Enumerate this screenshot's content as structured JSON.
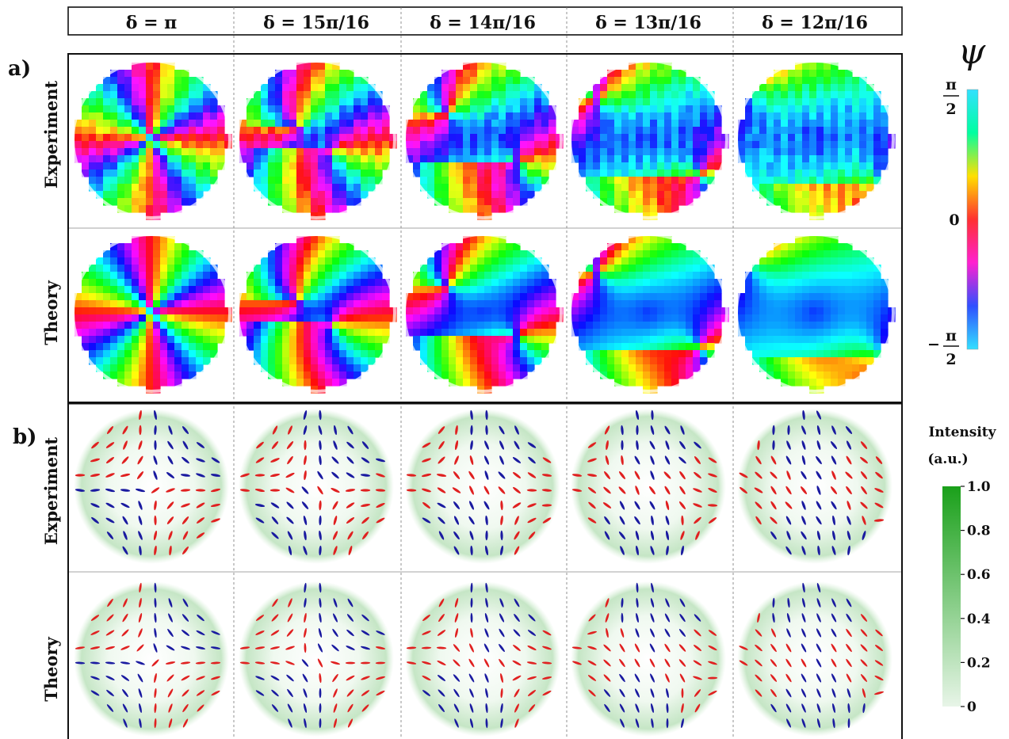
{
  "columns": [
    "δ = π",
    "δ = 15π/16",
    "δ = 14π/16",
    "δ = 13π/16",
    "δ = 12π/16"
  ],
  "delta_over_pi": [
    1.0,
    0.9375,
    0.875,
    0.8125,
    0.75
  ],
  "panel_a": {
    "label": "a)",
    "rows": [
      "Experiment",
      "Theory"
    ]
  },
  "panel_b": {
    "label": "b)",
    "rows": [
      "Experiment",
      "Theory"
    ]
  },
  "phase_colorbar": {
    "symbol": "ψ",
    "top_num": "π",
    "top_den": "2",
    "mid": "0",
    "bottom_sign": "−",
    "bottom_num": "π",
    "bottom_den": "2",
    "colors_top_to_bottom": [
      "#33e0ff",
      "#00ffa0",
      "#ffe000",
      "#ff3030",
      "#ff20d0",
      "#3050ff",
      "#33e0ff"
    ]
  },
  "intensity_colorbar": {
    "title_line1": "Intensity",
    "title_line2": "(a.u.)",
    "ticks": [
      "1.0",
      "0.8",
      "0.6",
      "0.4",
      "0.2",
      "0"
    ],
    "colors": [
      "#1aa01a",
      "#e8f5e8"
    ]
  },
  "ellipse_colors": {
    "right_handed": "#e02020",
    "left_handed": "#1a1aa0"
  }
}
